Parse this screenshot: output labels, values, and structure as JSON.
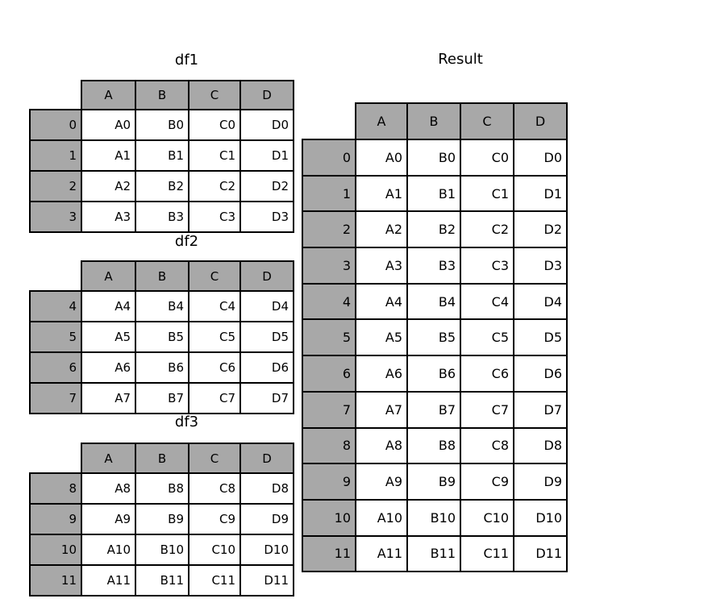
{
  "tables": [
    {
      "id": "df1",
      "title": "df1",
      "columns": [
        "A",
        "B",
        "C",
        "D"
      ],
      "index": [
        "0",
        "1",
        "2",
        "3"
      ],
      "rows": [
        [
          "A0",
          "B0",
          "C0",
          "D0"
        ],
        [
          "A1",
          "B1",
          "C1",
          "D1"
        ],
        [
          "A2",
          "B2",
          "C2",
          "D2"
        ],
        [
          "A3",
          "B3",
          "C3",
          "D3"
        ]
      ]
    },
    {
      "id": "df2",
      "title": "df2",
      "columns": [
        "A",
        "B",
        "C",
        "D"
      ],
      "index": [
        "4",
        "5",
        "6",
        "7"
      ],
      "rows": [
        [
          "A4",
          "B4",
          "C4",
          "D4"
        ],
        [
          "A5",
          "B5",
          "C5",
          "D5"
        ],
        [
          "A6",
          "B6",
          "C6",
          "D6"
        ],
        [
          "A7",
          "B7",
          "C7",
          "D7"
        ]
      ]
    },
    {
      "id": "df3",
      "title": "df3",
      "columns": [
        "A",
        "B",
        "C",
        "D"
      ],
      "index": [
        "8",
        "9",
        "10",
        "11"
      ],
      "rows": [
        [
          "A8",
          "B8",
          "C8",
          "D8"
        ],
        [
          "A9",
          "B9",
          "C9",
          "D9"
        ],
        [
          "A10",
          "B10",
          "C10",
          "D10"
        ],
        [
          "A11",
          "B11",
          "C11",
          "D11"
        ]
      ]
    },
    {
      "id": "result",
      "title": "Result",
      "columns": [
        "A",
        "B",
        "C",
        "D"
      ],
      "index": [
        "0",
        "1",
        "2",
        "3",
        "4",
        "5",
        "6",
        "7",
        "8",
        "9",
        "10",
        "11"
      ],
      "rows": [
        [
          "A0",
          "B0",
          "C0",
          "D0"
        ],
        [
          "A1",
          "B1",
          "C1",
          "D1"
        ],
        [
          "A2",
          "B2",
          "C2",
          "D2"
        ],
        [
          "A3",
          "B3",
          "C3",
          "D3"
        ],
        [
          "A4",
          "B4",
          "C4",
          "D4"
        ],
        [
          "A5",
          "B5",
          "C5",
          "D5"
        ],
        [
          "A6",
          "B6",
          "C6",
          "D6"
        ],
        [
          "A7",
          "B7",
          "C7",
          "D7"
        ],
        [
          "A8",
          "B8",
          "C8",
          "D8"
        ],
        [
          "A9",
          "B9",
          "C9",
          "D9"
        ],
        [
          "A10",
          "B10",
          "C10",
          "D10"
        ],
        [
          "A11",
          "B11",
          "C11",
          "D11"
        ]
      ]
    }
  ],
  "colors": {
    "header_fill": "#a8a8a8",
    "cell_fill": "#ffffff",
    "border": "#000000"
  }
}
